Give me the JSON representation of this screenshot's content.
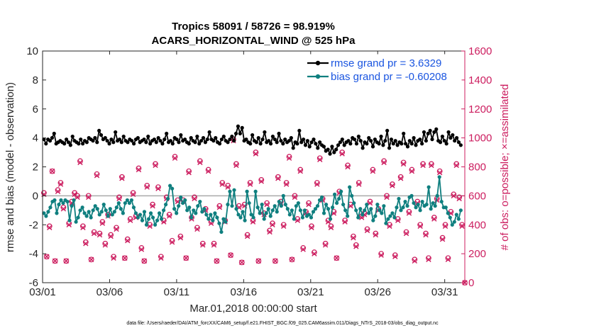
{
  "chart_data": {
    "type": "line",
    "title_line1": "Tropics 58091 / 58726 = 98.919%",
    "title_line2": "ACARS_HORIZONTAL_WIND @ 525 hPa",
    "xlabel": "Mar.01,2018 00:00:00 start",
    "ylabel_left": "rmse and bias (model - observation)",
    "ylabel_right": "# of obs: o=possible; ×=assimilated",
    "xlim": [
      0,
      31.5
    ],
    "ylim_left": [
      -6,
      10
    ],
    "ylim_right": [
      0,
      1600
    ],
    "x_ticks": [
      0,
      5,
      10,
      15,
      20,
      25,
      30
    ],
    "x_tick_labels": [
      "03/01",
      "03/06",
      "03/11",
      "03/16",
      "03/21",
      "03/26",
      "03/31"
    ],
    "y_ticks_left": [
      -6,
      -4,
      -2,
      0,
      2,
      4,
      6,
      8,
      10
    ],
    "y_tick_labels_left": [
      "-6",
      "-4",
      "-2",
      "0",
      "2",
      "4",
      "6",
      "8",
      "10"
    ],
    "y_ticks_right": [
      0,
      200,
      400,
      600,
      800,
      1000,
      1200,
      1400,
      1600
    ],
    "y_tick_labels_right": [
      "0",
      "200",
      "400",
      "600",
      "800",
      "1000",
      "1200",
      "1400",
      "1600"
    ],
    "zero_line": 0,
    "legend_position": "top-right",
    "colors": {
      "rmse": "#000000",
      "bias": "#0f7f7f",
      "obs": "#cc1d5f",
      "zero": "#aaaaaa",
      "left_axis": "#262626",
      "right_axis": "#cc1d5f",
      "legend_text": "#1a55e0"
    },
    "series": [
      {
        "name": "rmse grand pr = 3.6329",
        "style": "line-marker",
        "values": [
          3.9,
          3.6,
          3.9,
          3.8,
          4.0,
          4.3,
          3.6,
          3.7,
          3.8,
          3.7,
          3.6,
          3.9,
          3.7,
          3.5,
          4.1,
          3.8,
          3.7,
          3.6,
          3.9,
          3.6,
          3.8,
          3.7,
          4.0,
          3.9,
          3.8,
          4.0,
          3.7,
          4.5,
          4.2,
          3.9,
          4.0,
          3.8,
          3.6,
          3.9,
          3.7,
          4.4,
          3.8,
          3.9,
          3.7,
          4.1,
          3.8,
          3.7,
          3.9,
          3.8,
          3.6,
          3.9,
          4.0,
          3.7,
          3.8,
          3.9,
          3.7,
          4.1,
          3.6,
          3.8,
          3.9,
          3.7,
          4.0,
          3.8,
          3.6,
          3.9,
          4.3,
          3.7,
          3.8,
          3.6,
          4.0,
          3.9,
          3.7,
          4.2,
          3.8,
          3.9,
          3.7,
          3.6,
          4.0,
          3.8,
          3.7,
          4.1,
          3.6,
          3.8,
          4.0,
          3.7,
          3.9,
          4.4,
          3.9,
          3.8,
          4.0,
          3.7,
          3.6,
          3.9,
          4.1,
          3.8,
          3.7,
          3.9,
          4.1,
          3.8,
          4.3,
          4.8,
          4.3,
          4.7,
          3.8,
          3.9,
          3.7,
          3.6,
          4.2,
          3.8,
          3.7,
          4.0,
          3.6,
          3.9,
          4.4,
          3.7,
          3.8,
          3.6,
          4.1,
          3.9,
          3.7,
          4.3,
          3.8,
          3.6,
          3.9,
          3.7,
          3.8,
          4.0,
          3.3,
          3.7,
          3.6,
          4.5,
          3.7,
          3.9,
          3.5,
          3.8,
          3.4,
          3.7,
          3.9,
          3.6,
          3.3,
          3.7,
          3.5,
          3.4,
          3.1,
          3.2,
          2.9,
          3.4,
          3.0,
          3.2,
          3.5,
          3.7,
          3.9,
          3.5,
          3.7,
          3.8,
          3.6,
          4.0,
          3.9,
          3.6,
          4.1,
          3.8,
          3.3,
          3.7,
          3.6,
          4.0,
          3.8,
          3.4,
          3.9,
          3.7,
          3.6,
          4.1,
          3.5,
          3.8,
          4.5,
          3.3,
          3.9,
          3.6,
          3.8,
          3.5,
          3.7,
          3.6,
          4.3,
          3.6,
          3.4,
          3.8,
          3.6,
          4.0,
          3.5,
          3.8,
          3.9,
          3.6,
          4.4,
          3.8,
          4.3,
          4.5,
          3.9,
          4.4,
          4.6,
          3.8,
          3.7,
          4.1,
          3.8,
          3.6,
          4.4,
          4.0,
          4.2,
          3.8,
          4.0,
          3.7,
          3.5
        ]
      },
      {
        "name": "bias grand pr = -0.60208",
        "style": "line-marker",
        "values": [
          -1.2,
          -1.4,
          -1.1,
          -0.8,
          -0.4,
          -0.3,
          -1.2,
          -0.6,
          -0.3,
          -0.5,
          -0.3,
          -0.4,
          -1.7,
          -0.7,
          -0.3,
          -1.8,
          -1.5,
          -1.0,
          -0.8,
          -1.2,
          -1.4,
          -1.1,
          -1.5,
          -1.0,
          -0.7,
          -0.9,
          -1.3,
          -1.1,
          -0.6,
          -1.0,
          -1.4,
          -0.9,
          -1.3,
          -1.1,
          -0.8,
          -0.5,
          -0.9,
          -1.2,
          -0.5,
          -0.3,
          -0.5,
          -0.3,
          -0.8,
          -1.2,
          -1.5,
          -1.3,
          -1.7,
          -1.1,
          -2.0,
          -1.6,
          -1.2,
          -1.5,
          -2.0,
          -1.7,
          -1.2,
          -1.6,
          -1.0,
          -0.6,
          -0.2,
          0.7,
          0.5,
          -0.9,
          -1.2,
          -0.7,
          -0.1,
          -0.5,
          -0.3,
          -1.0,
          -0.8,
          -1.5,
          -1.0,
          -1.2,
          -0.7,
          -0.4,
          -1.1,
          -0.9,
          -1.3,
          -1.6,
          -1.3,
          -1.7,
          -1.2,
          -1.5,
          -1.9,
          -2.5,
          -1.6,
          -1.8,
          -0.6,
          0.3,
          -0.7,
          0.4,
          -0.9,
          -1.3,
          -1.5,
          -1.1,
          -1.7,
          0.3,
          -0.5,
          -1.3,
          -1.5,
          0.3,
          -0.8,
          -1.2,
          -0.6,
          -1.6,
          -1.2,
          -0.9,
          -1.4,
          -1.0,
          -0.7,
          -1.1,
          -0.4,
          -0.7,
          0.0,
          -0.6,
          -0.9,
          -1.3,
          -1.0,
          -1.6,
          -0.7,
          -0.5,
          -1.0,
          -1.5,
          -1.0,
          -1.4,
          -1.3,
          -1.5,
          -1.1,
          -0.9,
          -0.7,
          -0.3,
          -0.1,
          -1.2,
          -0.6,
          -0.9,
          -1.6,
          -0.8,
          0.1,
          -0.5,
          -0.2,
          0.3,
          -0.6,
          -1.0,
          -1.4,
          0.6,
          0.0,
          -0.5,
          -1.0,
          -1.5,
          -0.9,
          -1.3,
          -1.0,
          -0.6,
          -1.2,
          -0.9,
          -1.7,
          -1.4,
          -0.6,
          -1.0,
          -1.2,
          -0.7,
          -1.9,
          -1.6,
          -1.4,
          -1.2,
          -1.5,
          -0.8,
          -0.2,
          -1.0,
          -0.8,
          -0.4,
          -0.7,
          -0.1,
          0.0,
          -0.5,
          -0.8,
          -0.6,
          -1.0,
          -0.4,
          -0.7,
          -0.6,
          0.6,
          -0.9,
          -0.5,
          -0.7,
          0.0,
          1.3,
          -0.4,
          -0.8,
          -0.8,
          -1.2,
          -1.5,
          -2.0,
          -1.8,
          -1.3,
          -1.6,
          -1.0
        ]
      },
      {
        "name": "obs possible",
        "axis": "right",
        "style": "marker-o",
        "values": [
          620,
          180,
          390,
          770,
          150,
          640,
          690,
          520,
          150,
          410,
          560,
          620,
          600,
          840,
          390,
          280,
          600,
          160,
          350,
          750,
          340,
          420,
          270,
          470,
          330,
          180,
          380,
          590,
          730,
          170,
          300,
          440,
          620,
          460,
          790,
          240,
          150,
          670,
          400,
          540,
          820,
          660,
          180,
          430,
          590,
          470,
          290,
          870,
          570,
          320,
          570,
          170,
          770,
          450,
          590,
          380,
          840,
          270,
          510,
          780,
          420,
          270,
          150,
          530,
          690,
          430,
          670,
          190,
          990,
          820,
          530,
          140,
          540,
          330,
          690,
          430,
          900,
          150,
          710,
          480,
          550,
          360,
          410,
          150,
          730,
          560,
          400,
          690,
          870,
          160,
          600,
          440,
          780,
          240,
          490,
          550,
          390,
          210,
          690,
          860,
          580,
          270,
          430,
          390,
          490,
          170,
          630,
          900,
          430,
          810,
          540,
          320,
          260,
          690,
          460,
          480,
          370,
          560,
          780,
          340,
          510,
          200,
          840,
          600,
          400,
          680,
          190,
          440,
          730,
          830,
          350,
          490,
          780,
          160,
          560,
          400,
          820,
          340,
          170,
          820,
          450,
          580,
          770,
          310,
          400,
          170,
          490,
          610,
          820,
          590,
          400,
          0
        ]
      },
      {
        "name": "obs assimilated",
        "axis": "right",
        "style": "marker-x",
        "values": [
          610,
          180,
          380,
          770,
          150,
          630,
          680,
          510,
          150,
          400,
          550,
          610,
          590,
          830,
          380,
          270,
          590,
          160,
          340,
          740,
          330,
          410,
          260,
          460,
          320,
          170,
          370,
          580,
          720,
          170,
          290,
          430,
          610,
          450,
          780,
          230,
          150,
          660,
          390,
          530,
          810,
          650,
          170,
          420,
          580,
          460,
          280,
          860,
          560,
          310,
          560,
          170,
          760,
          440,
          580,
          370,
          830,
          260,
          500,
          770,
          410,
          260,
          150,
          520,
          680,
          420,
          660,
          190,
          980,
          810,
          520,
          140,
          530,
          320,
          680,
          420,
          890,
          150,
          700,
          470,
          540,
          350,
          400,
          150,
          720,
          550,
          390,
          680,
          860,
          160,
          590,
          430,
          770,
          230,
          480,
          540,
          380,
          200,
          680,
          850,
          570,
          260,
          420,
          380,
          480,
          170,
          620,
          890,
          420,
          800,
          530,
          310,
          250,
          680,
          450,
          470,
          360,
          550,
          770,
          330,
          500,
          190,
          830,
          590,
          390,
          670,
          180,
          430,
          720,
          820,
          340,
          480,
          770,
          150,
          550,
          390,
          810,
          330,
          160,
          810,
          440,
          570,
          760,
          300,
          390,
          160,
          480,
          600,
          810,
          580,
          390,
          0
        ]
      }
    ]
  },
  "footnote": "data file: /Users/raeder/DAI/ATM_forcXX/CAM6_setup/f.e21.FHIST_BGC.f09_025.CAM6assim.011/Diags_NTrS_2018-03/obs_diag_output.nc"
}
